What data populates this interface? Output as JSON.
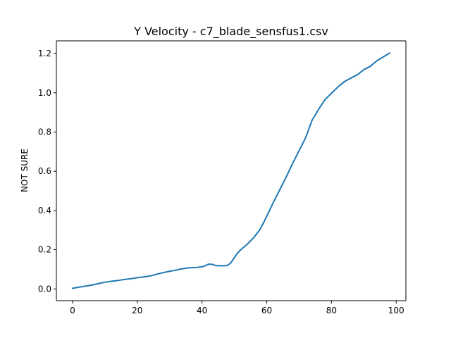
{
  "chart_data": {
    "type": "line",
    "title": "Y Velocity - c7_blade_sensfus1.csv",
    "xlabel": "",
    "ylabel": "NOT SURE",
    "xlim": [
      -5,
      103
    ],
    "ylim": [
      -0.06,
      1.265
    ],
    "xticks": [
      0,
      20,
      40,
      60,
      80,
      100
    ],
    "yticks": [
      0.0,
      0.2,
      0.4,
      0.6,
      0.8,
      1.0,
      1.2
    ],
    "xtick_labels": [
      "0",
      "20",
      "40",
      "60",
      "80",
      "100"
    ],
    "ytick_labels": [
      "0.0",
      "0.2",
      "0.4",
      "0.6",
      "0.8",
      "1.0",
      "1.2"
    ],
    "grid": false,
    "series": [
      {
        "color": "#1f77b4",
        "x": [
          0,
          2,
          4,
          6,
          8,
          10,
          12,
          14,
          16,
          18,
          20,
          22,
          24,
          26,
          28,
          30,
          32,
          34,
          36,
          38,
          40,
          41,
          42,
          43,
          44,
          45,
          46,
          47,
          48,
          49,
          50,
          51,
          52,
          54,
          56,
          58,
          60,
          62,
          64,
          66,
          68,
          70,
          72,
          74,
          76,
          78,
          80,
          82,
          84,
          86,
          88,
          90,
          92,
          94,
          96,
          98
        ],
        "y": [
          0.003,
          0.009,
          0.014,
          0.02,
          0.027,
          0.034,
          0.039,
          0.043,
          0.048,
          0.052,
          0.057,
          0.061,
          0.066,
          0.075,
          0.083,
          0.09,
          0.096,
          0.103,
          0.108,
          0.109,
          0.113,
          0.118,
          0.126,
          0.126,
          0.12,
          0.118,
          0.118,
          0.118,
          0.121,
          0.135,
          0.16,
          0.183,
          0.2,
          0.228,
          0.262,
          0.305,
          0.37,
          0.44,
          0.505,
          0.57,
          0.64,
          0.705,
          0.77,
          0.86,
          0.915,
          0.965,
          0.998,
          1.03,
          1.057,
          1.075,
          1.092,
          1.118,
          1.135,
          1.163,
          1.183,
          1.203
        ]
      }
    ]
  }
}
